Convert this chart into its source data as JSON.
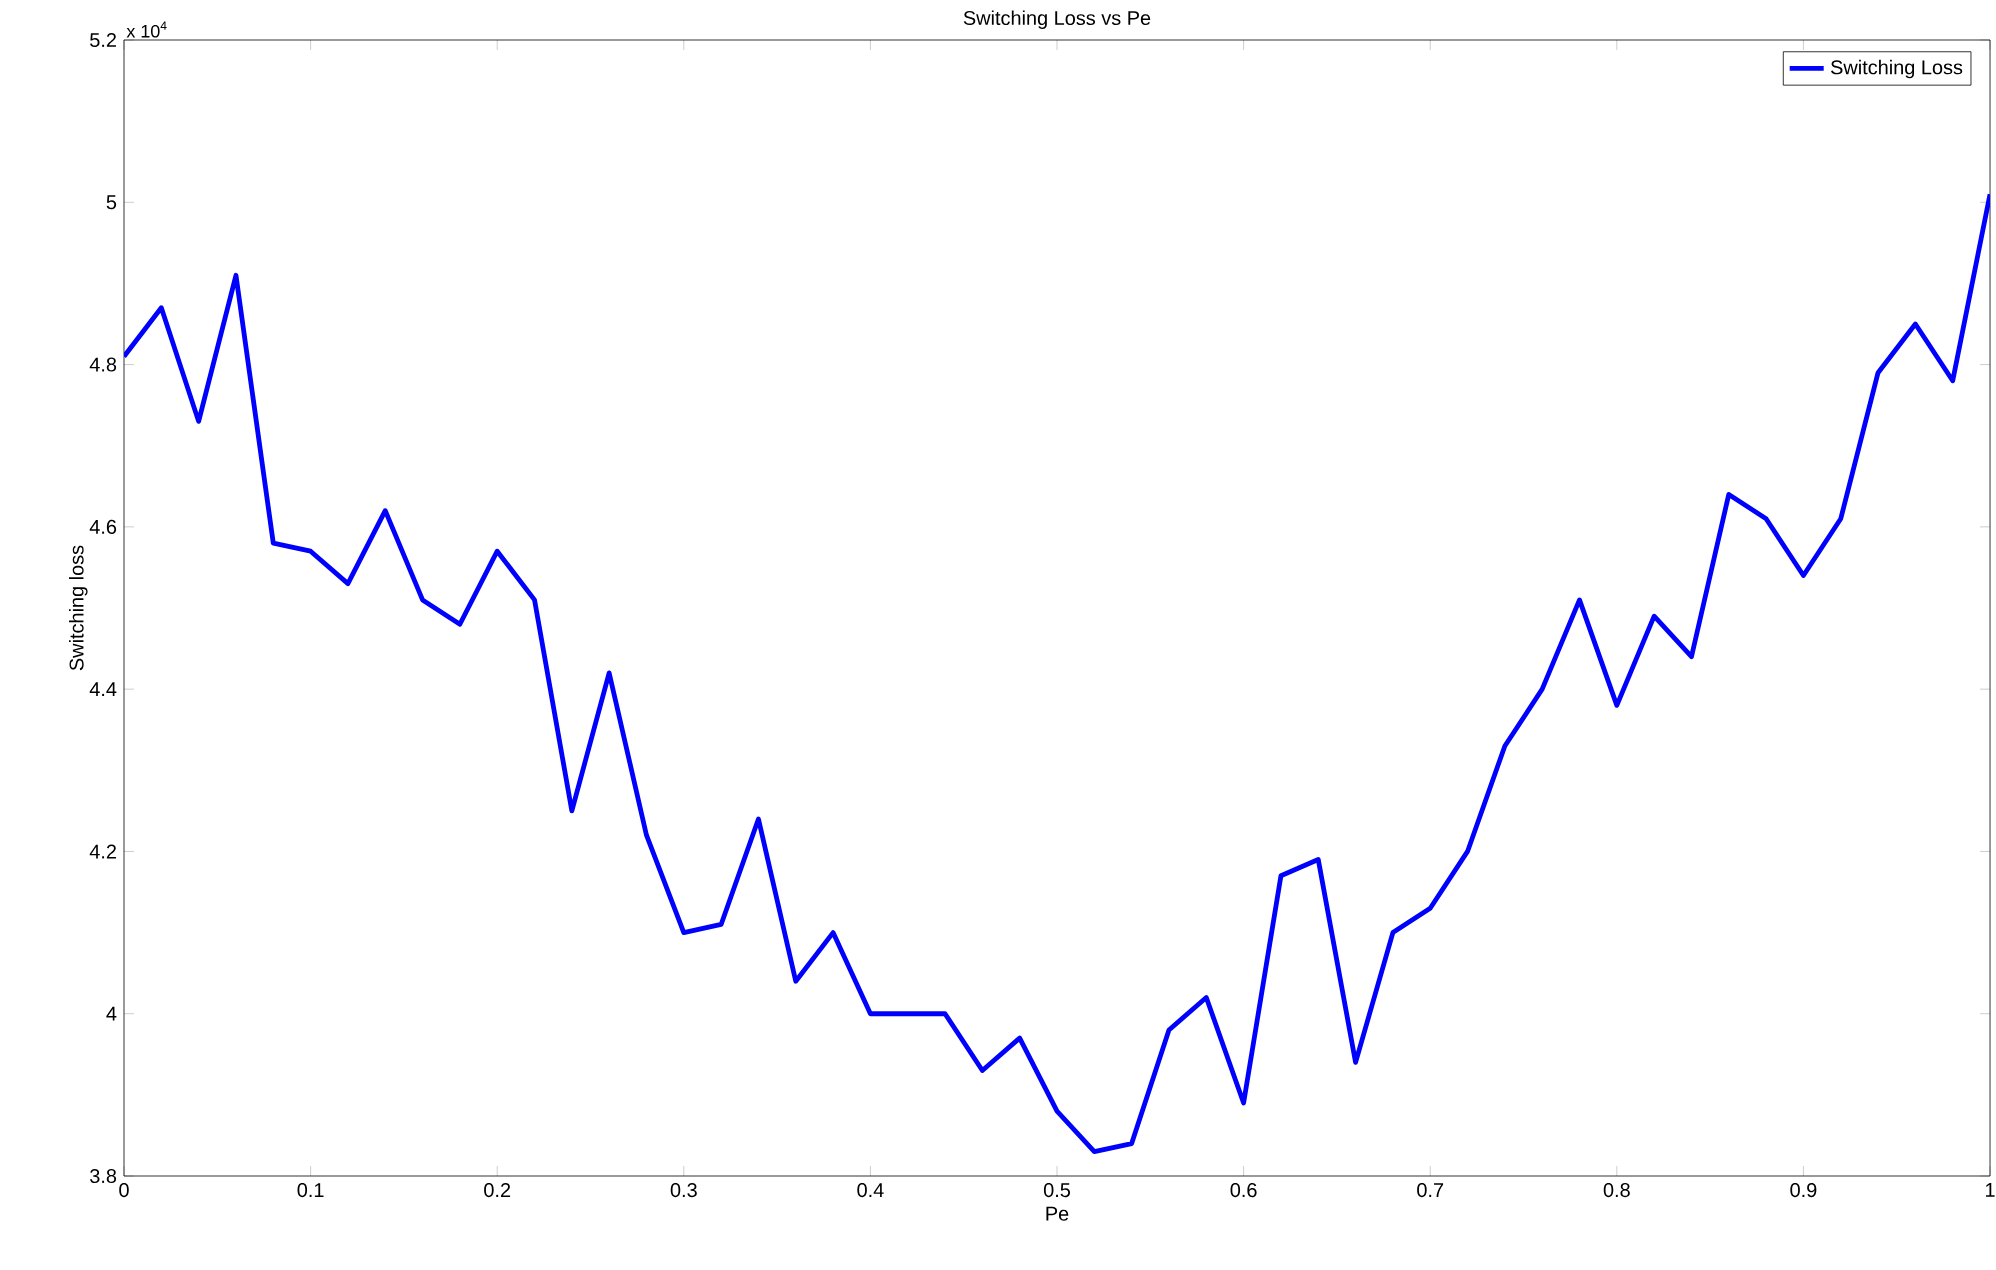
{
  "chart_data": {
    "type": "line",
    "title": "Switching Loss vs Pe",
    "xlabel": "Pe",
    "ylabel": "Switching loss",
    "annotations": [
      "x 10$^{4}$"
    ],
    "x": [
      0,
      0.02,
      0.04,
      0.06,
      0.08,
      0.1,
      0.12,
      0.14,
      0.16,
      0.18,
      0.2,
      0.22,
      0.24,
      0.26,
      0.28,
      0.3,
      0.32,
      0.34,
      0.36,
      0.38,
      0.4,
      0.42,
      0.44,
      0.46,
      0.48,
      0.5,
      0.52,
      0.54,
      0.56,
      0.58,
      0.6,
      0.62,
      0.64,
      0.66,
      0.68,
      0.7,
      0.72,
      0.74,
      0.76,
      0.78,
      0.8,
      0.82,
      0.84,
      0.86,
      0.88,
      0.9,
      0.92,
      0.94,
      0.96,
      0.98,
      1
    ],
    "series": [
      {
        "name": "Switching Loss",
        "color": "#0000ff",
        "values": [
          4.81,
          4.87,
          4.73,
          4.91,
          4.58,
          4.57,
          4.53,
          4.62,
          4.51,
          4.48,
          4.57,
          4.51,
          4.25,
          4.42,
          4.22,
          4.1,
          4.11,
          4.24,
          4.04,
          4.1,
          4.0,
          4.0,
          4.0,
          3.93,
          3.97,
          3.88,
          3.83,
          3.84,
          3.98,
          4.02,
          3.89,
          4.17,
          4.19,
          3.94,
          4.1,
          4.13,
          4.2,
          4.33,
          4.4,
          4.51,
          4.38,
          4.49,
          4.44,
          4.64,
          4.61,
          4.54,
          4.61,
          4.79,
          4.85,
          4.78,
          5.01
        ]
      }
    ],
    "xlim": [
      0,
      1
    ],
    "ylim": [
      3.8,
      5.2
    ],
    "xticks": [
      0,
      0.1,
      0.2,
      0.3,
      0.4,
      0.5,
      0.6,
      0.7,
      0.8,
      0.9,
      1
    ],
    "yticks": [
      3.8,
      4,
      4.2,
      4.4,
      4.6,
      4.8,
      5,
      5.2
    ],
    "grid": false,
    "legend": "top right",
    "marker": "none",
    "line_style": "solid"
  }
}
